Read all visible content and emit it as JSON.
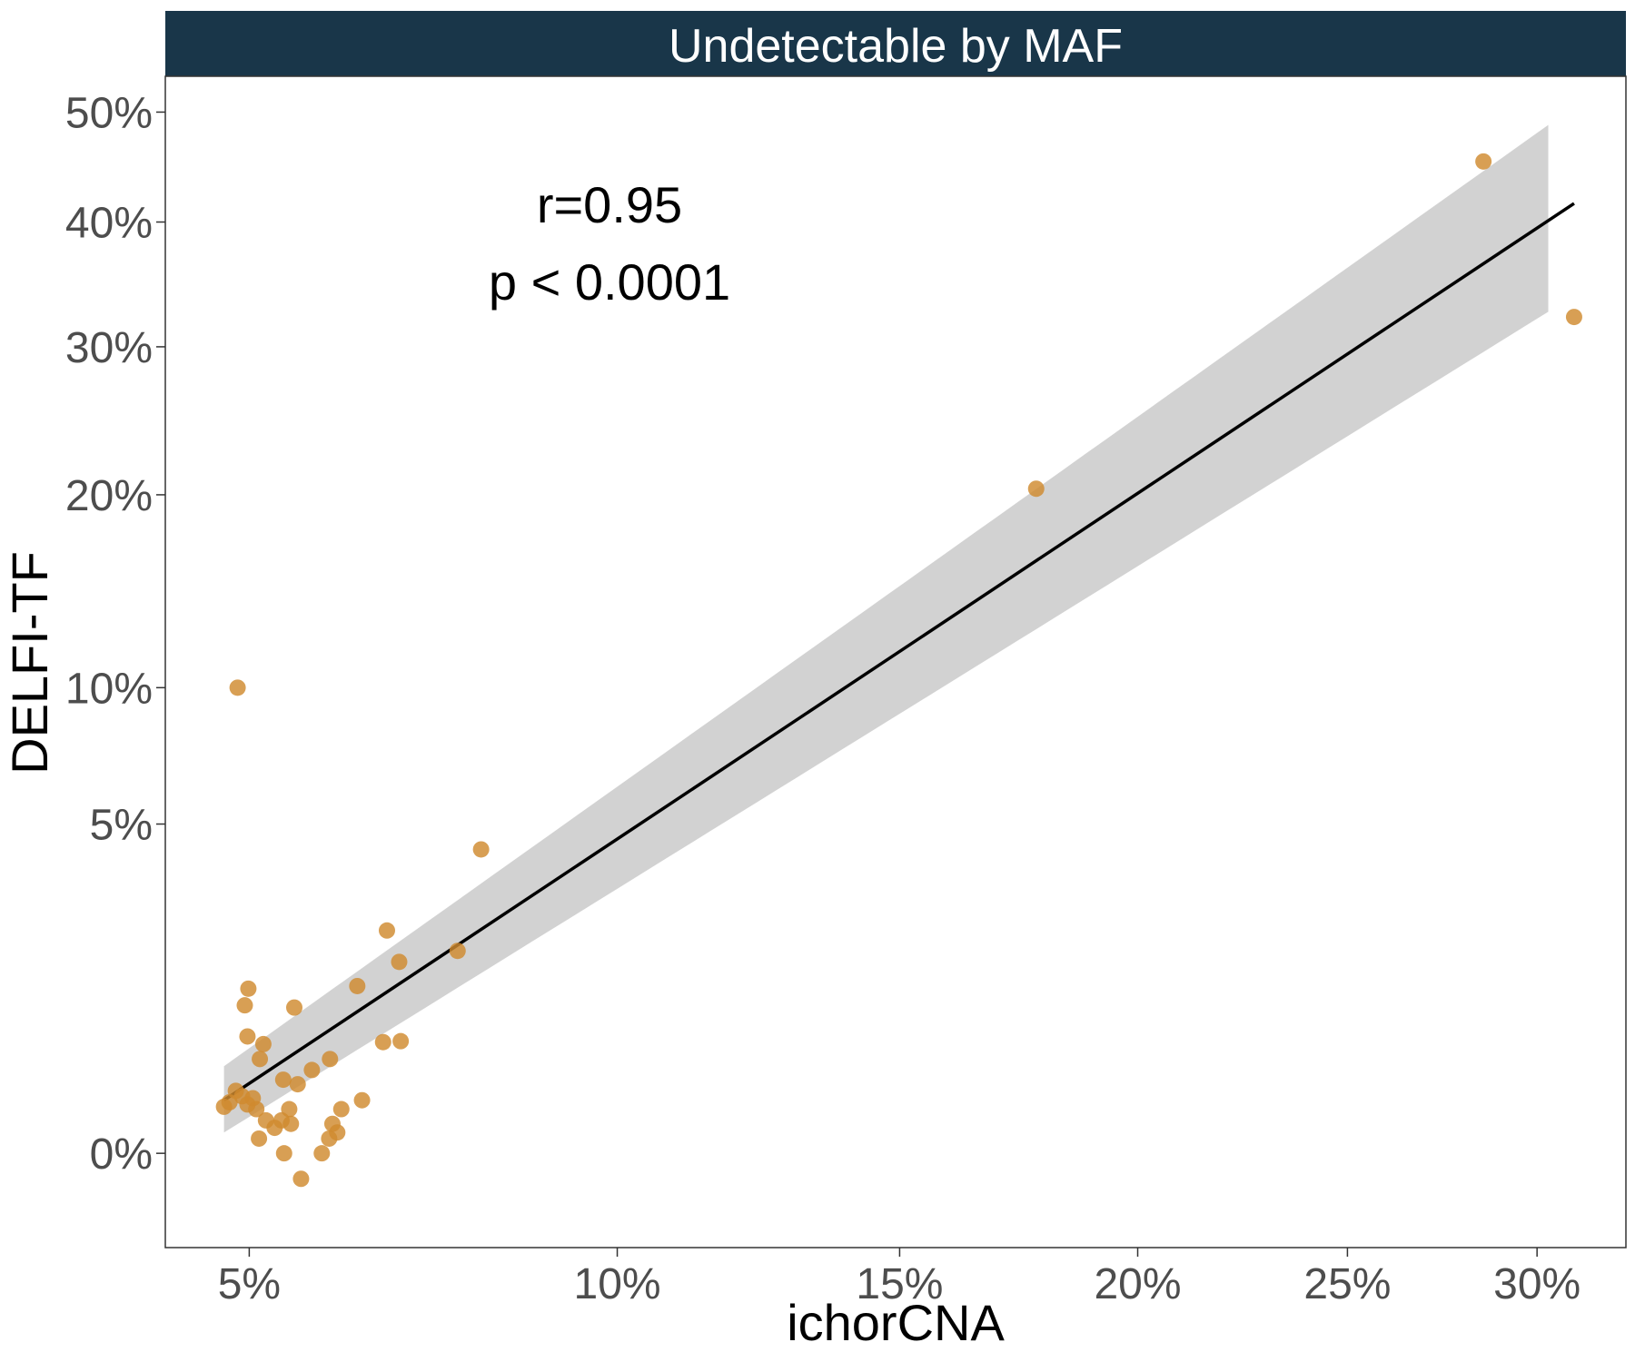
{
  "chart_data": {
    "type": "scatter",
    "facet_title": "Undetectable by MAF",
    "xlabel": "ichorCNA",
    "ylabel": "DELFI-TF",
    "x_ticks": [
      "5%",
      "10%",
      "15%",
      "20%",
      "25%",
      "30%"
    ],
    "y_ticks": [
      "0%",
      "5%",
      "10%",
      "20%",
      "30%",
      "40%",
      "50%"
    ],
    "x_scale": "sqrt",
    "y_scale": "sqrt",
    "xlim": [
      0.041,
      0.325
    ],
    "ylim": [
      -0.0041,
      0.535
    ],
    "grid": false,
    "annotations": [
      "r=0.95",
      "p < 0.0001"
    ],
    "point_color": "#d08a2e",
    "band_color": "#d0d0d0",
    "line_color": "#000000",
    "strip_color": "#193649",
    "points": [
      {
        "x": 0.0487,
        "y": 0.1
      },
      {
        "x": 0.0795,
        "y": 0.0426
      },
      {
        "x": 0.0667,
        "y": 0.0229
      },
      {
        "x": 0.0683,
        "y": 0.0169
      },
      {
        "x": 0.0762,
        "y": 0.0189
      },
      {
        "x": 0.0629,
        "y": 0.0129
      },
      {
        "x": 0.0499,
        "y": 0.0125
      },
      {
        "x": 0.0495,
        "y": 0.0101
      },
      {
        "x": 0.0552,
        "y": 0.0098
      },
      {
        "x": 0.0498,
        "y": 0.0063
      },
      {
        "x": 0.0516,
        "y": 0.0055
      },
      {
        "x": 0.0512,
        "y": 0.0041
      },
      {
        "x": 0.0662,
        "y": 0.0057
      },
      {
        "x": 0.0685,
        "y": 0.0058
      },
      {
        "x": 0.0595,
        "y": 0.0041
      },
      {
        "x": 0.0573,
        "y": 0.0032
      },
      {
        "x": 0.0556,
        "y": 0.0022
      },
      {
        "x": 0.0539,
        "y": 0.0025
      },
      {
        "x": 0.0635,
        "y": 0.0013
      },
      {
        "x": 0.0609,
        "y": 0.0009
      },
      {
        "x": 0.0478,
        "y": 0.0012
      },
      {
        "x": 0.0485,
        "y": 0.0018
      },
      {
        "x": 0.0492,
        "y": 0.0015
      },
      {
        "x": 0.0504,
        "y": 0.0014
      },
      {
        "x": 0.0498,
        "y": 0.0011
      },
      {
        "x": 0.0508,
        "y": 0.0009
      },
      {
        "x": 0.0519,
        "y": 0.0005
      },
      {
        "x": 0.0529,
        "y": 0.0003
      },
      {
        "x": 0.0537,
        "y": 0.0005
      },
      {
        "x": 0.0548,
        "y": 0.0004
      },
      {
        "x": 0.0546,
        "y": 0.0009
      },
      {
        "x": 0.0511,
        "y": 0.0001
      },
      {
        "x": 0.054,
        "y": 0.0
      },
      {
        "x": 0.0598,
        "y": 0.0004
      },
      {
        "x": 0.0594,
        "y": 0.0001
      },
      {
        "x": 0.0604,
        "y": 0.0002
      },
      {
        "x": 0.056,
        "y": -0.0003
      },
      {
        "x": 0.0585,
        "y": 0.0
      },
      {
        "x": 0.0472,
        "y": 0.001
      },
      {
        "x": 0.1778,
        "y": 0.2037
      },
      {
        "x": 0.2854,
        "y": 0.4537
      },
      {
        "x": 0.3103,
        "y": 0.3226
      }
    ],
    "fit_line": [
      {
        "x": 0.0472,
        "y": 0.0013
      },
      {
        "x": 0.3103,
        "y": 0.4161
      }
    ],
    "ci_band": [
      {
        "x": 0.0472,
        "lower": 0.0002,
        "upper": 0.0035
      },
      {
        "x": 0.3031,
        "lower": 0.3266,
        "upper": 0.4877
      }
    ]
  }
}
